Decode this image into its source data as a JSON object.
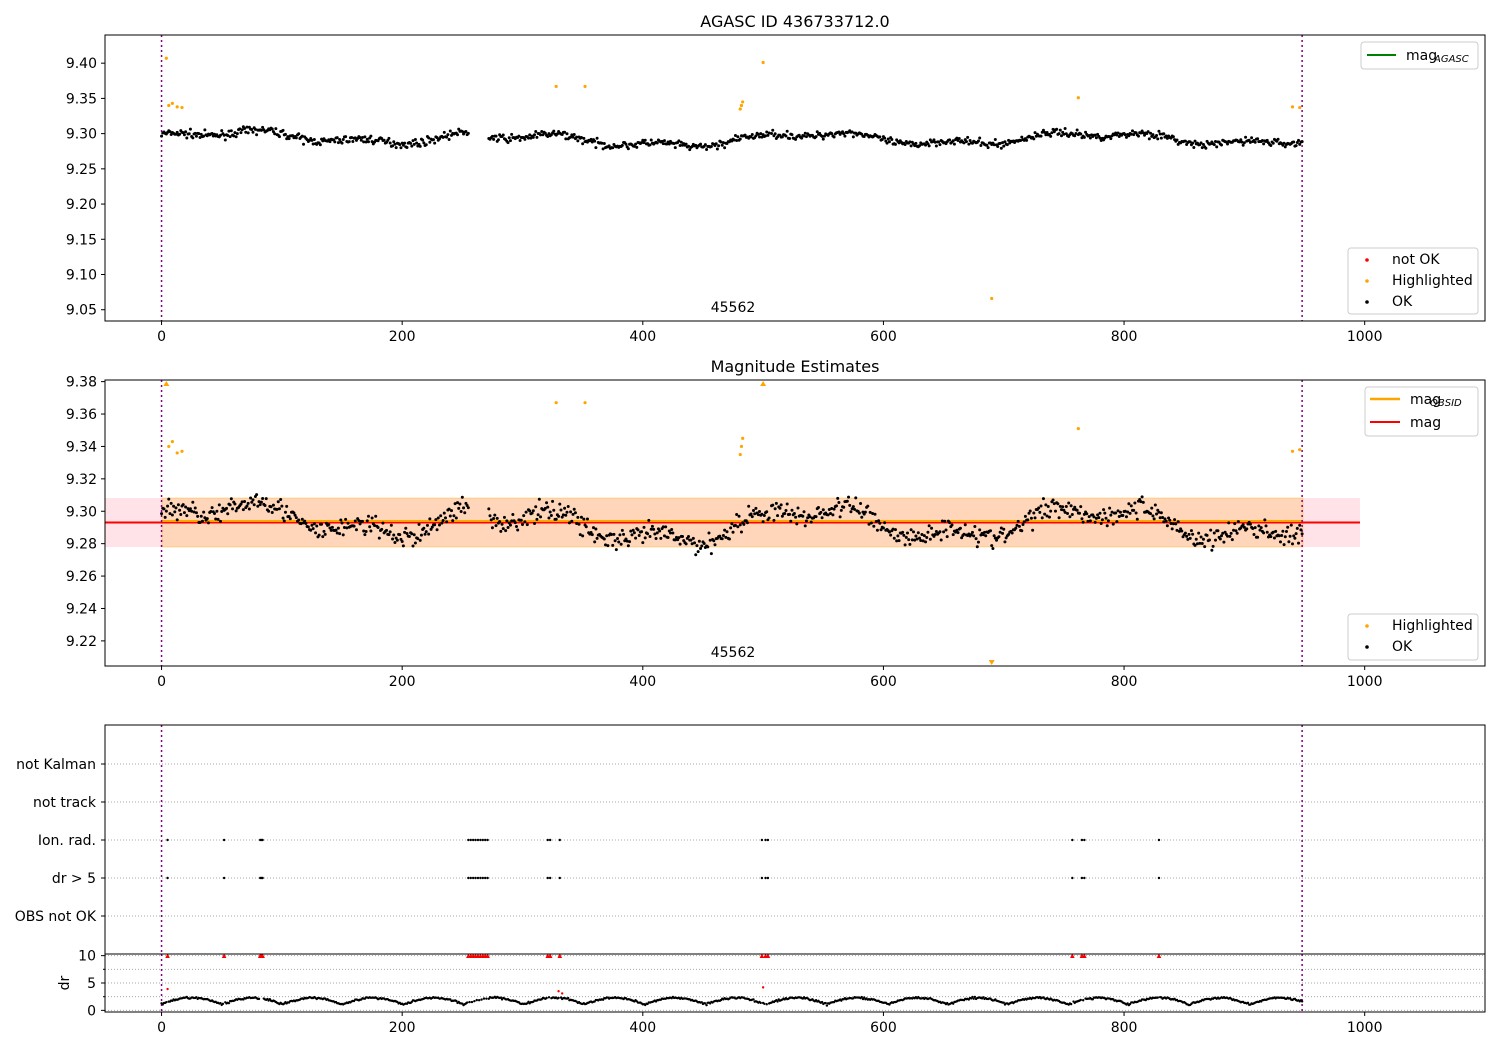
{
  "chart_data": [
    {
      "type": "scatter",
      "title": "AGASC ID 436733712.0",
      "xticks": [
        "0",
        "200",
        "400",
        "600",
        "800",
        "1000"
      ],
      "yticks": [
        "9.05",
        "9.10",
        "9.15",
        "9.20",
        "9.25",
        "9.30",
        "9.35",
        "9.40"
      ],
      "xlim": [
        -47,
        1100
      ],
      "ylim": [
        9.034,
        9.44
      ],
      "obsid_label": "45562",
      "vlines": [
        0,
        948
      ],
      "legend_lines": [
        {
          "label": "mag",
          "sub": "AGASC",
          "color": "#008000"
        }
      ],
      "legend_points": [
        {
          "label": "not OK",
          "color": "#ff0000"
        },
        {
          "label": "Highlighted",
          "color": "#ffa500"
        },
        {
          "label": "OK",
          "color": "#000000"
        }
      ],
      "series": [
        {
          "name": "OK",
          "color": "#000000",
          "segments": [
            [
              0,
              255,
              9.295
            ],
            [
              272,
              505,
              9.29
            ],
            [
              507,
              948,
              9.293
            ]
          ],
          "spread": 0.012
        },
        {
          "name": "Highlighted",
          "color": "#ffa500",
          "points": [
            [
              4,
              9.407
            ],
            [
              6,
              9.34
            ],
            [
              9,
              9.343
            ],
            [
              13,
              9.338
            ],
            [
              17,
              9.337
            ],
            [
              328,
              9.367
            ],
            [
              352,
              9.367
            ],
            [
              481,
              9.335
            ],
            [
              482,
              9.34
            ],
            [
              483,
              9.345
            ],
            [
              500,
              9.401
            ],
            [
              690,
              9.066
            ],
            [
              762,
              9.351
            ],
            [
              940,
              9.338
            ],
            [
              946,
              9.337
            ]
          ]
        }
      ]
    },
    {
      "type": "scatter",
      "title": "Magnitude Estimates",
      "xticks": [
        "0",
        "200",
        "400",
        "600",
        "800",
        "1000"
      ],
      "yticks": [
        "9.22",
        "9.24",
        "9.26",
        "9.28",
        "9.30",
        "9.32",
        "9.34",
        "9.36",
        "9.38"
      ],
      "xlim": [
        -47,
        1100
      ],
      "ylim": [
        9.2045,
        9.381
      ],
      "obsid_label": "45562",
      "vlines": [
        0,
        948
      ],
      "mag": 9.293,
      "mag_band": [
        9.278,
        9.308
      ],
      "legend_lines": [
        {
          "label": "mag",
          "sub": "OBSID",
          "color": "#ffa500"
        },
        {
          "label": "mag",
          "sub": "",
          "color": "#ff0000"
        }
      ],
      "legend_points": [
        {
          "label": "Highlighted",
          "color": "#ffa500"
        },
        {
          "label": "OK",
          "color": "#000000"
        }
      ],
      "series": [
        {
          "name": "OK",
          "color": "#000000",
          "segments": [
            [
              0,
              255,
              9.295
            ],
            [
              272,
              505,
              9.29
            ],
            [
              507,
              948,
              9.293
            ]
          ],
          "spread": 0.014
        },
        {
          "name": "Highlighted",
          "color": "#ffa500",
          "points": [
            [
              6,
              9.34
            ],
            [
              9,
              9.343
            ],
            [
              13,
              9.336
            ],
            [
              17,
              9.337
            ],
            [
              328,
              9.367
            ],
            [
              352,
              9.367
            ],
            [
              481,
              9.335
            ],
            [
              482,
              9.34
            ],
            [
              483,
              9.345
            ],
            [
              762,
              9.351
            ],
            [
              940,
              9.337
            ],
            [
              946,
              9.338
            ]
          ]
        },
        {
          "name": "Highlighted-offscale",
          "color": "#ffa500",
          "up": [
            4,
            500
          ],
          "down": [
            690
          ]
        }
      ]
    },
    {
      "type": "scatter",
      "categories": [
        "not Kalman",
        "not track",
        "Ion. rad.",
        "dr > 5",
        "OBS not OK"
      ],
      "flag_events": [
        5,
        52,
        82,
        83,
        84,
        255,
        257,
        259,
        261,
        263,
        265,
        267,
        269,
        271,
        321,
        323,
        331,
        499,
        502,
        504,
        757,
        765,
        767,
        829
      ],
      "xlim": [
        -47,
        1100
      ],
      "vlines": [
        0,
        948
      ]
    },
    {
      "type": "scatter",
      "ylabel": "dr",
      "yticks": [
        "0",
        "5",
        "10"
      ],
      "xticks": [
        "0",
        "200",
        "400",
        "600",
        "800",
        "1000"
      ],
      "ylim": [
        -0.3,
        10.3
      ],
      "xlim": [
        -47,
        1100
      ],
      "vlines": [
        0,
        948
      ],
      "dr_clipped": 10,
      "dr_high_points": [
        [
          5,
          3.9
        ],
        [
          330,
          3.5
        ],
        [
          333,
          3.1
        ],
        [
          500,
          4.2
        ]
      ]
    }
  ]
}
